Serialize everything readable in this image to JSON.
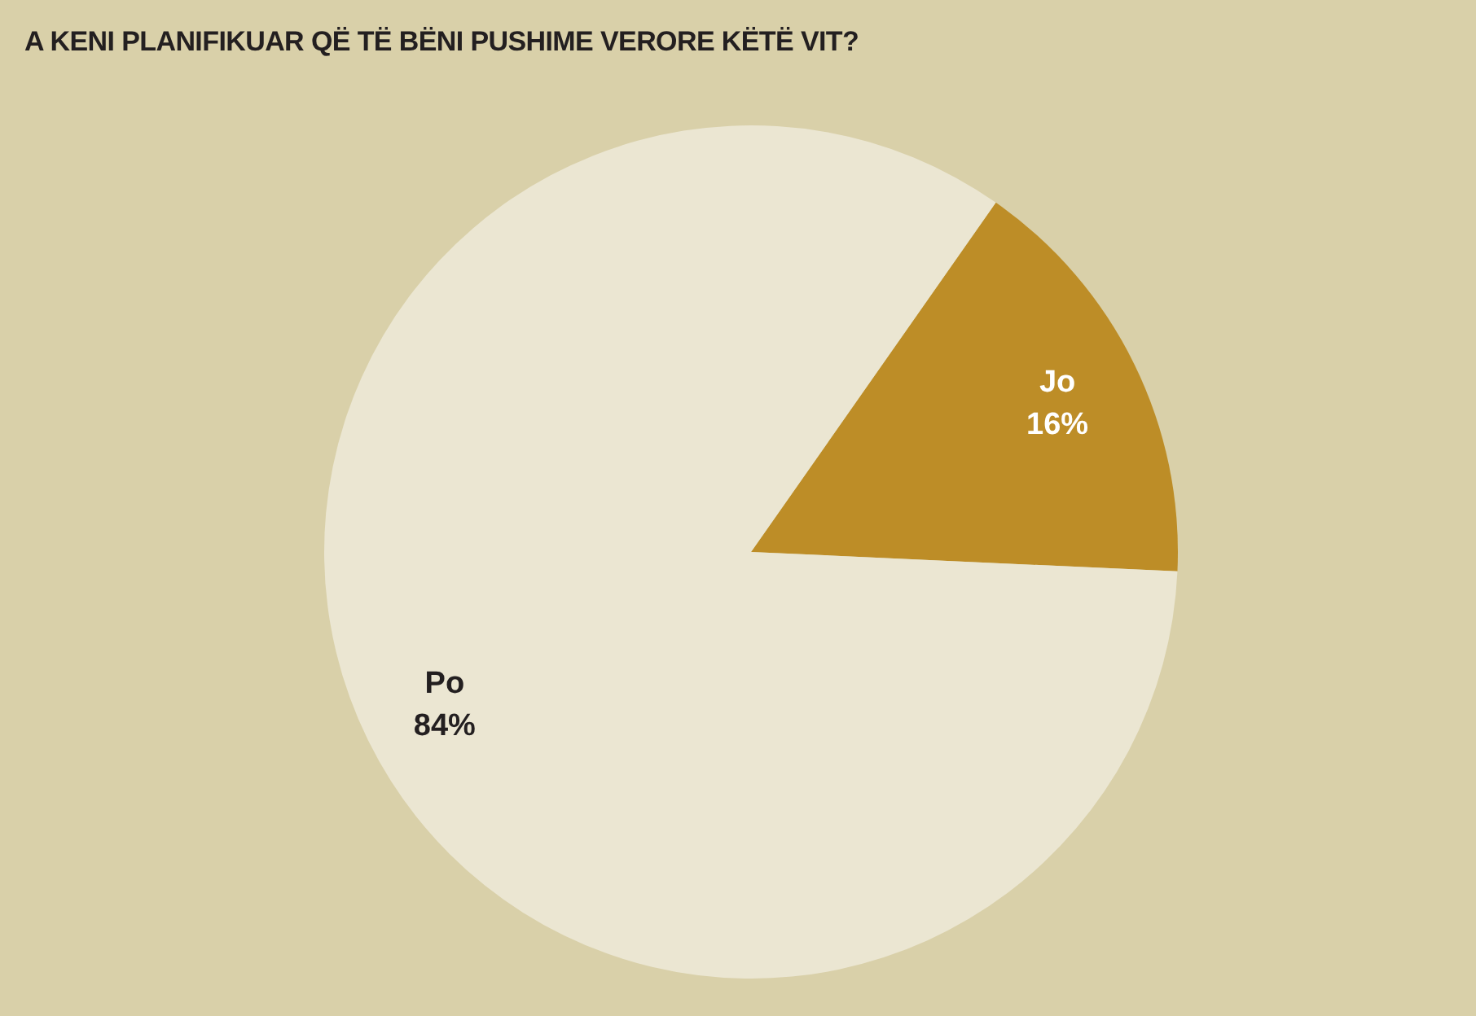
{
  "chart_data": {
    "type": "pie",
    "title": "A KENI PLANIFIKUAR QË TË BËNI PUSHIME VERORE KËTË VIT?",
    "categories": [
      "Jo",
      "Po"
    ],
    "values": [
      16,
      84
    ],
    "colors": [
      "#bd8d27",
      "#ebe6d2"
    ],
    "value_labels": [
      "16%",
      "84%"
    ]
  }
}
